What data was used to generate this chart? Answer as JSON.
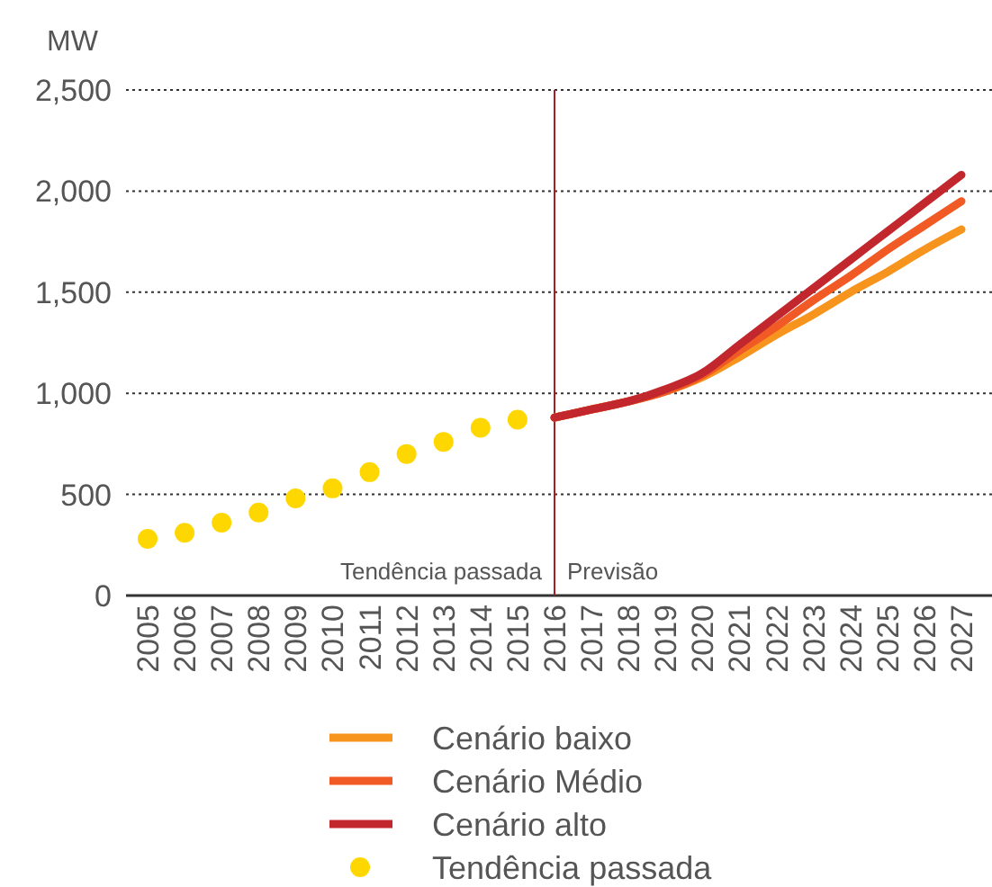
{
  "chart_data": {
    "type": "line",
    "ylabel": "MW",
    "categories": [
      "2005",
      "2006",
      "2007",
      "2008",
      "2009",
      "2010",
      "2011",
      "2012",
      "2013",
      "2014",
      "2015",
      "2016",
      "2017",
      "2018",
      "2019",
      "2020",
      "2021",
      "2022",
      "2023",
      "2024",
      "2025",
      "2026",
      "2027"
    ],
    "series": [
      {
        "name": "Cenário baixo",
        "color": "#f7941d",
        "values": [
          null,
          null,
          null,
          null,
          null,
          null,
          null,
          null,
          null,
          null,
          null,
          880,
          920,
          960,
          1010,
          1080,
          1180,
          1290,
          1390,
          1500,
          1600,
          1710,
          1810
        ]
      },
      {
        "name": "Cenário Médio",
        "color": "#f15a24",
        "values": [
          null,
          null,
          null,
          null,
          null,
          null,
          null,
          null,
          null,
          null,
          null,
          880,
          920,
          960,
          1010,
          1090,
          1210,
          1330,
          1460,
          1580,
          1710,
          1830,
          1950
        ]
      },
      {
        "name": "Cenário alto",
        "color": "#c1272d",
        "values": [
          null,
          null,
          null,
          null,
          null,
          null,
          null,
          null,
          null,
          null,
          null,
          880,
          920,
          960,
          1020,
          1100,
          1240,
          1380,
          1520,
          1660,
          1800,
          1940,
          2080
        ]
      },
      {
        "name": "Tendência passada",
        "type": "scatter",
        "marker": "circle",
        "color": "#ffd700",
        "values": [
          280,
          310,
          360,
          410,
          480,
          530,
          610,
          700,
          760,
          830,
          870,
          null,
          null,
          null,
          null,
          null,
          null,
          null,
          null,
          null,
          null,
          null,
          null
        ]
      }
    ],
    "ylim": [
      0,
      2500
    ],
    "yticks": [
      0,
      500,
      {
        "value": 1000,
        "label": "1,000"
      },
      {
        "value": 1500,
        "label": "1,500"
      },
      {
        "value": 2000,
        "label": "2,000"
      },
      {
        "value": 2500,
        "label": "2,500"
      }
    ],
    "grid": "y",
    "legend": "bottom",
    "ref_lines": [
      {
        "axis": "x",
        "value": "2016",
        "color": "#a31f24"
      }
    ],
    "annotations": [
      "Tendência passada",
      "Previsão"
    ]
  }
}
